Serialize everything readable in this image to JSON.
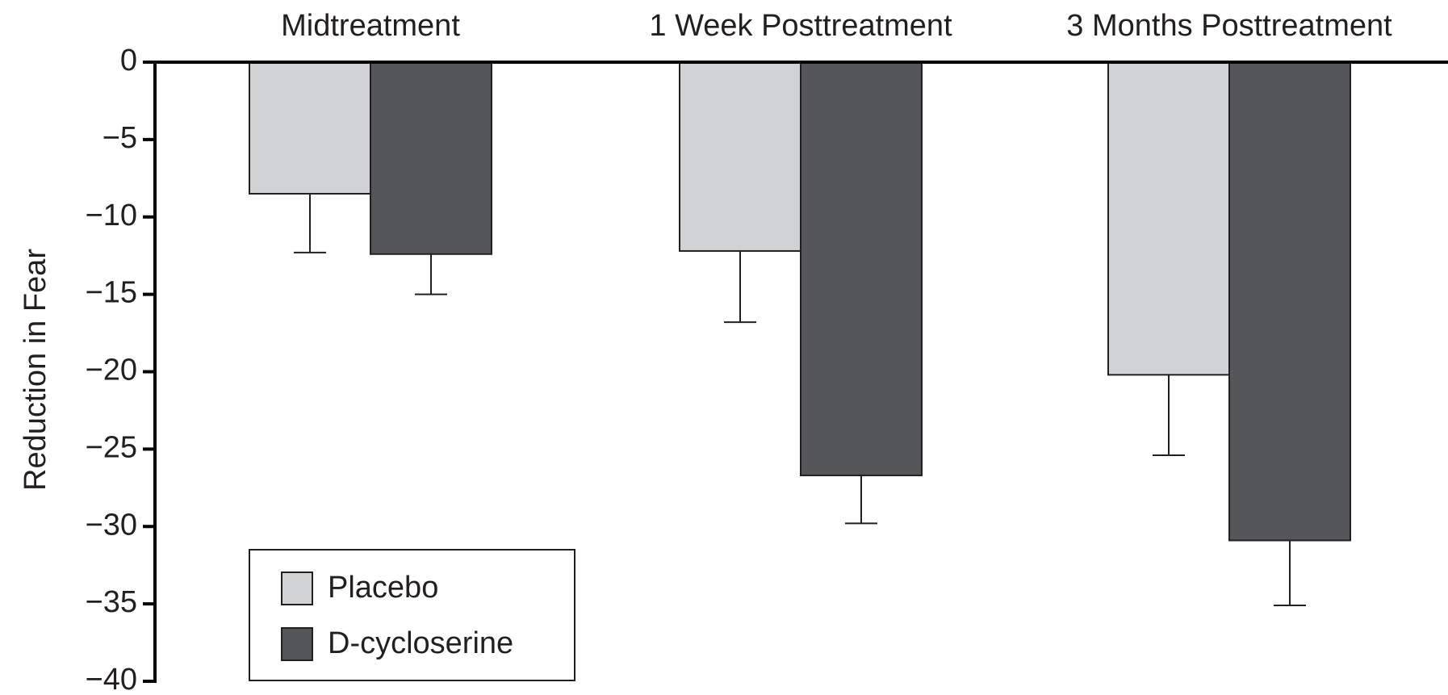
{
  "chart_data": {
    "type": "bar",
    "categories": [
      "Midtreatment",
      "1 Week Posttreatment",
      "3 Months Posttreatment"
    ],
    "y_label": "Reduction in Fear",
    "series": [
      {
        "name": "Placebo",
        "color": "#d1d2d4",
        "values": [
          -8.5,
          -12.2,
          -20.2
        ],
        "errors": [
          3.8,
          4.6,
          5.2
        ]
      },
      {
        "name": "D-cycloserine",
        "color": "#55565a",
        "values": [
          -12.4,
          -26.7,
          -30.9
        ],
        "errors": [
          2.6,
          3.1,
          4.2
        ]
      }
    ],
    "ylim": [
      -40,
      0
    ],
    "yticks": [
      0,
      {
        "value": -5,
        "label": "−5"
      },
      {
        "value": -10,
        "label": "−10"
      },
      {
        "value": -15,
        "label": "−15"
      },
      {
        "value": -20,
        "label": "−20"
      },
      {
        "value": -25,
        "label": "−25"
      },
      {
        "value": -30,
        "label": "−30"
      },
      {
        "value": -35,
        "label": "−35"
      },
      {
        "value": -40,
        "label": "−40"
      }
    ],
    "legend": "lower left"
  }
}
